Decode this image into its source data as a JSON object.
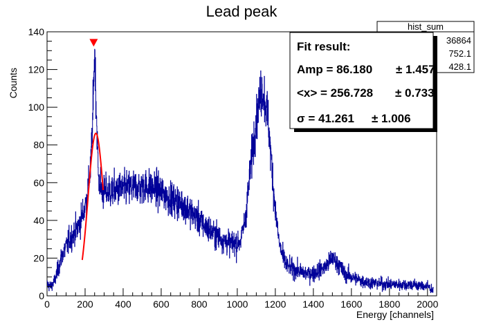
{
  "chart_data": {
    "type": "histogram",
    "title": "Lead peak",
    "xlabel": "Energy [channels]",
    "ylabel": "Counts",
    "xlim": [
      0,
      2048
    ],
    "ylim": [
      0,
      140
    ],
    "xticks": [
      0,
      200,
      400,
      600,
      800,
      1000,
      1200,
      1400,
      1600,
      1800,
      2000
    ],
    "yticks": [
      0,
      20,
      40,
      60,
      80,
      100,
      120,
      140
    ],
    "grid": false,
    "histogram_color": "#000099",
    "fit_color": "#ff0000",
    "marker_color": "#ff0000",
    "histogram_envelope": {
      "x": [
        0,
        20,
        40,
        60,
        80,
        100,
        120,
        160,
        190,
        210,
        230,
        242,
        250,
        258,
        270,
        290,
        320,
        360,
        420,
        480,
        520,
        560,
        600,
        640,
        680,
        720,
        760,
        800,
        840,
        880,
        920,
        960,
        1000,
        1020,
        1040,
        1060,
        1080,
        1100,
        1120,
        1130,
        1140,
        1160,
        1180,
        1200,
        1220,
        1240,
        1260,
        1300,
        1350,
        1400,
        1440,
        1470,
        1500,
        1530,
        1560,
        1600,
        1650,
        1700,
        1800,
        1900,
        2000,
        2030
      ],
      "y": [
        6,
        5,
        8,
        15,
        22,
        26,
        30,
        36,
        44,
        52,
        70,
        100,
        130,
        100,
        62,
        55,
        55,
        56,
        57,
        58,
        58,
        57,
        55,
        52,
        50,
        48,
        44,
        40,
        36,
        33,
        30,
        28,
        28,
        30,
        40,
        58,
        78,
        95,
        105,
        110,
        106,
        95,
        70,
        45,
        28,
        20,
        16,
        14,
        12,
        12,
        14,
        16,
        20,
        17,
        12,
        10,
        8,
        7,
        6,
        6,
        5,
        3
      ]
    },
    "fit": {
      "function": "gaussian",
      "amp": 86.18,
      "mean": 256.728,
      "sigma": 41.261,
      "range": [
        185,
        295
      ]
    },
    "peak_marker": {
      "x": 245,
      "y": 134
    },
    "stats_box": {
      "name": "hist_sum",
      "entries": "36864",
      "mean": "752.1",
      "std_dev": "428.1"
    },
    "fit_box": {
      "heading": "Fit result:",
      "amp_line": "Amp = 86.180",
      "amp_err": "± 1.457",
      "mean_line": "<x> = 256.728",
      "mean_err": "± 0.733",
      "sigma_line": "σ = 41.261",
      "sigma_err": "± 1.006"
    }
  }
}
